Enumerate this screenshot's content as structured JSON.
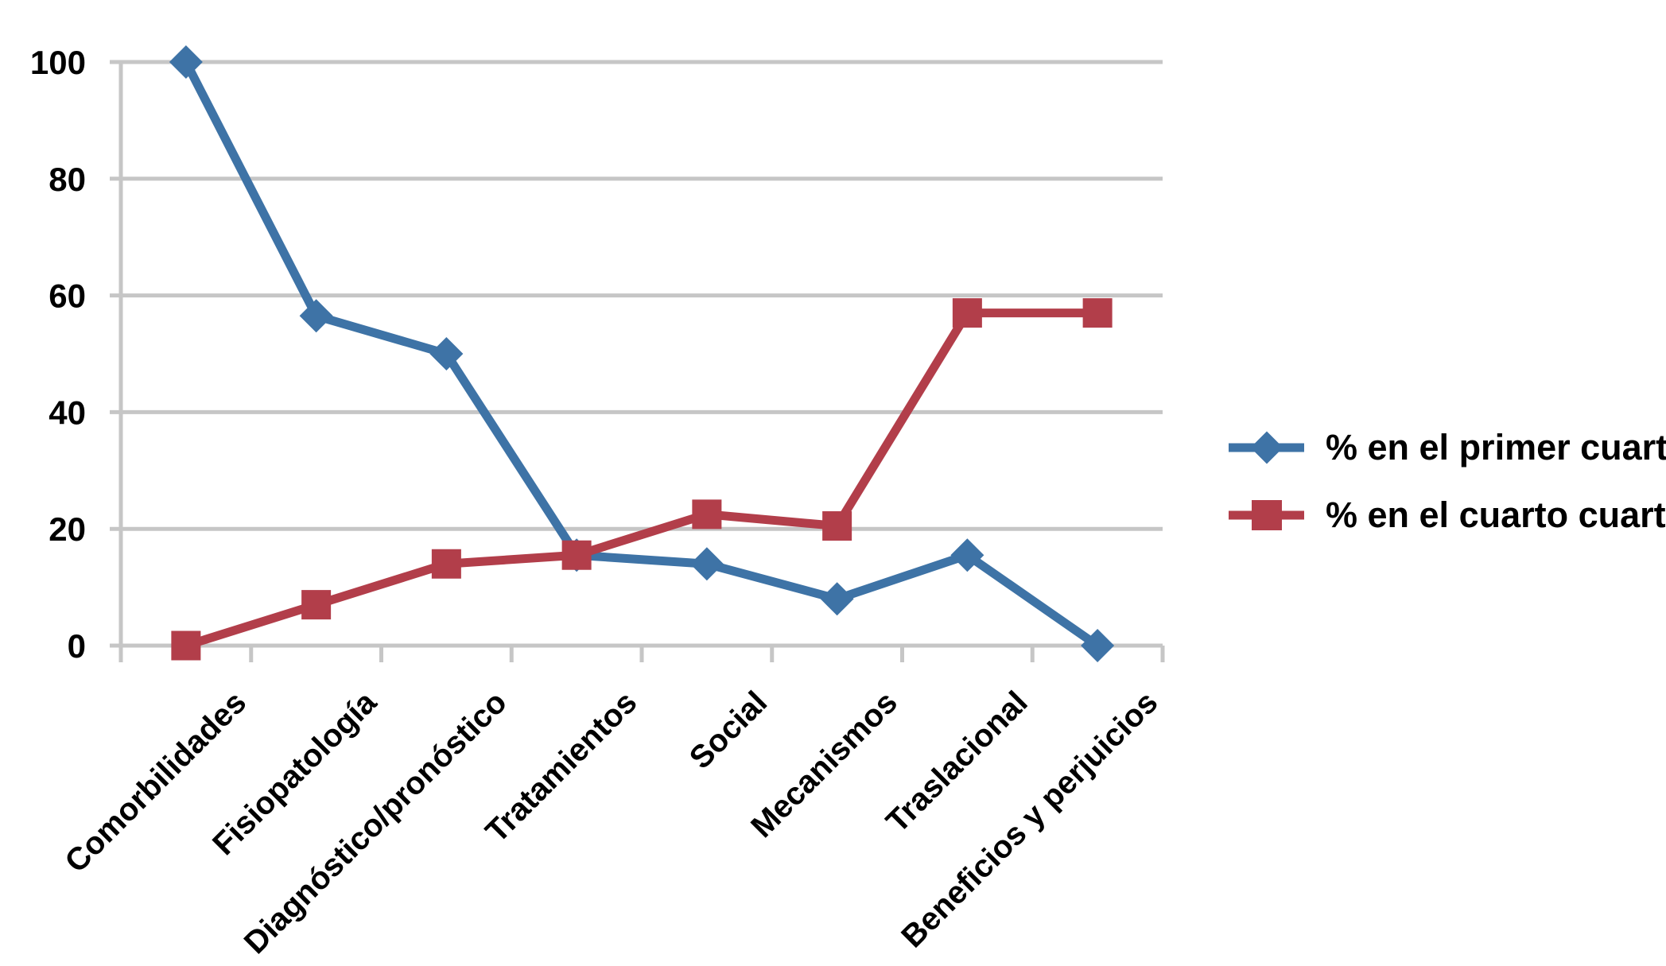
{
  "chart_data": {
    "type": "line",
    "title": "",
    "categories": [
      "Comorbilidades",
      "Fisiopatología",
      "Diagnóstico/pronóstico",
      "Tratamientos",
      "Social",
      "Mecanismos",
      "Traslacional",
      "Beneficios y perjuicios"
    ],
    "series": [
      {
        "name": "% en el primer cuartil",
        "marker": "diamond",
        "color": "#3E73A6",
        "values": [
          100,
          56.5,
          50,
          15.5,
          14,
          8,
          15.5,
          0
        ]
      },
      {
        "name": "% en el cuarto cuartil",
        "marker": "square",
        "color": "#B23E4A",
        "values": [
          0,
          7,
          14,
          15.5,
          22.5,
          20.5,
          57,
          57
        ]
      }
    ],
    "ylim": [
      0,
      100
    ],
    "yticks": [
      0,
      20,
      40,
      60,
      80,
      100
    ],
    "xlabel": "",
    "ylabel": "",
    "grid": "horizontal",
    "grid_color": "#C6C6C6",
    "text_color": "#000000",
    "background": "#FFFFFF",
    "legend_position": "right"
  }
}
